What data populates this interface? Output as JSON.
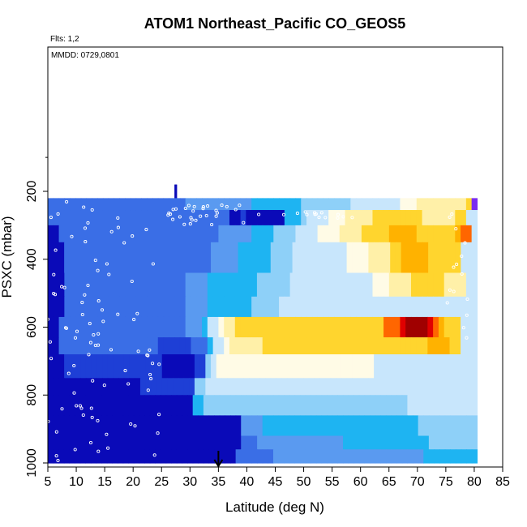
{
  "chart_data": {
    "type": "heatmap",
    "title": "ATOM1 Northeast_Pacific CO_GEOS5",
    "flights_label": "Flts: 1,2",
    "date_label": "MMDD: 0729,0801",
    "xlabel": "Latitude (deg N)",
    "ylabel": "PSXC (mbar)",
    "xlim": [
      5,
      85
    ],
    "ylim": [
      1000,
      0
    ],
    "x_ticks": [
      5,
      10,
      15,
      20,
      25,
      30,
      35,
      40,
      45,
      50,
      55,
      60,
      65,
      70,
      75,
      80,
      85
    ],
    "y_ticks": [
      200,
      400,
      600,
      800,
      1000
    ],
    "marker_latitude": 35,
    "colors": {
      "0": "#0a0ab8",
      "1": "#1e3fd6",
      "2": "#3a6ee6",
      "3": "#5a9af0",
      "4": "#1eb4f2",
      "5": "#8ed0f8",
      "6": "#c8e6fc",
      "7": "#fffbe6",
      "8": "#fff0a8",
      "9": "#ffd52e",
      "A": "#ffb200",
      "B": "#ff6600",
      "C": "#e00000",
      "D": "#a00000",
      "P": "#7a2cf0"
    },
    "level_bands": [
      {
        "top": 180,
        "bottom": 220,
        "row": "....................000000.....................................................",
        "xmin": 26,
        "xmax": 31
      },
      {
        "top": 220,
        "bottom": 255,
        "row": "22222222222222222222222223333333333334444444445555555556666666667778888888889P"
      },
      {
        "top": 255,
        "bottom": 300,
        "row": "222222222222222222222222222222222001000000044456666777888889999999998888889966"
      },
      {
        "top": 300,
        "bottom": 350,
        "row": "00222222222222222222222222222223333334444555566667777888899999AAAAA9999999ABB6"
      },
      {
        "top": 350,
        "bottom": 440,
        "row": "00022222222222222222222222222233333444444555566666666667777888899AAAAA999999666"
      },
      {
        "top": 440,
        "bottom": 510,
        "row": "000222222222222222222222233334444444445555556666666666666667778888999999888866"
      },
      {
        "top": 510,
        "bottom": 570,
        "row": "000222222222222222222222233334444444455555666666666666666666666666666666666666"
      },
      {
        "top": 570,
        "bottom": 630,
        "row": "0022222222222222222222222333466788999999999999999999999999999BBBCDDDDCBA999666"
      },
      {
        "top": 630,
        "bottom": 680,
        "row": "002222222222222222221111112224667888888999999999999999999999999999999AAAA99666"
      },
      {
        "top": 680,
        "bottom": 750,
        "row": "0001111111111111111110000001156777777777777777777777777777776666666666666666666"
      },
      {
        "top": 750,
        "bottom": 800,
        "row": "0000000000000000011111111115566666666666666666666666666666666666666666666666666"
      },
      {
        "top": 800,
        "bottom": 860,
        "row": "00000000000000000000000000044555555555555555555555555555555555555556666666666666"
      },
      {
        "top": 860,
        "bottom": 920,
        "row": "00000000000000000000000000000000000033334444444444444444444444444444455555555555"
      },
      {
        "top": 920,
        "bottom": 960,
        "row": "00000000000000000000000000000000000022233333333333333334444444444444444555555555"
      },
      {
        "top": 960,
        "bottom": 1000,
        "row": "00000000000000000000000000000000000222222233333333333333333333333333334444444444"
      }
    ]
  }
}
